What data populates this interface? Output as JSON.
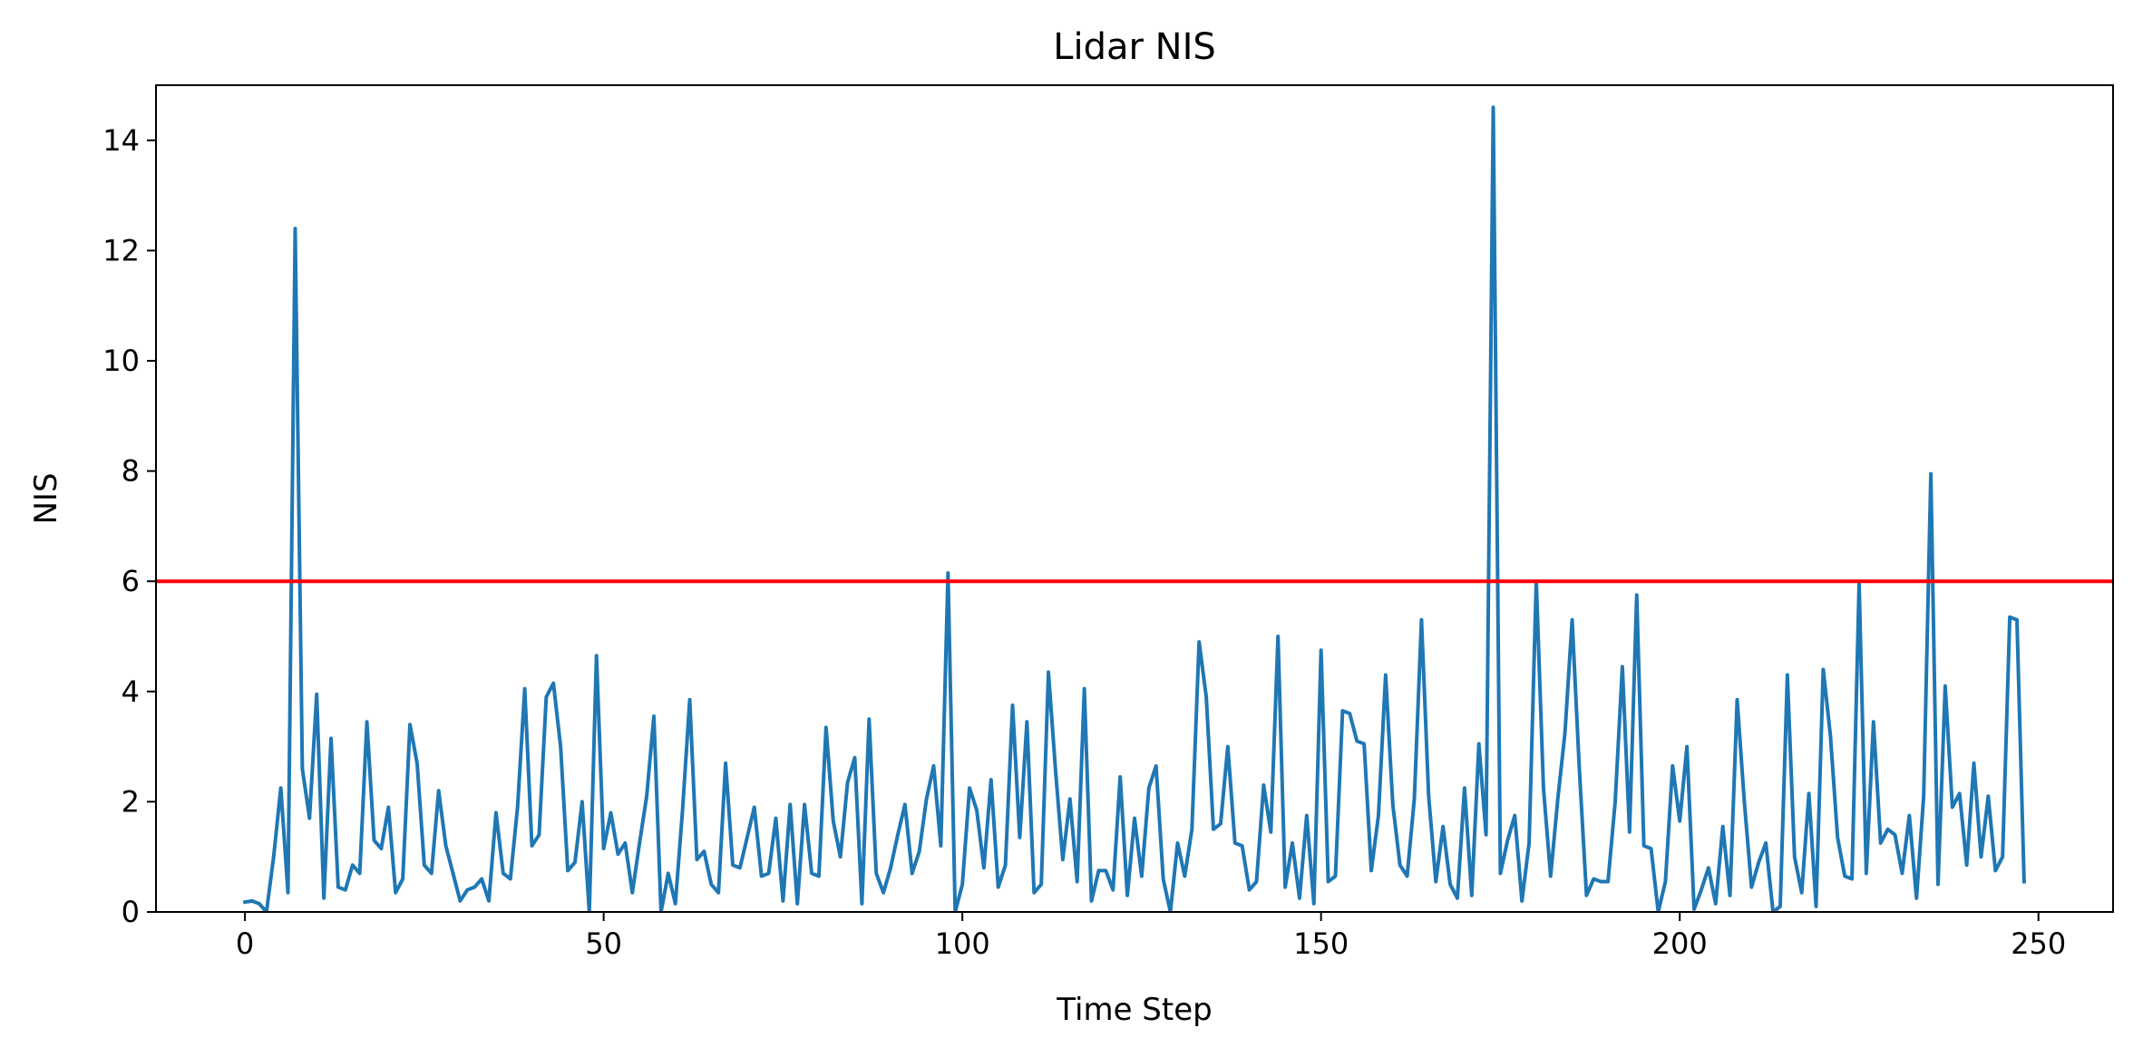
{
  "chart_data": {
    "type": "line",
    "title": "Lidar NIS",
    "xlabel": "Time Step",
    "ylabel": "NIS",
    "xlim": [
      -12.4,
      260.4
    ],
    "ylim": [
      0,
      15
    ],
    "xticks": [
      0,
      50,
      100,
      150,
      200,
      250
    ],
    "yticks": [
      0,
      2,
      4,
      6,
      8,
      10,
      12,
      14
    ],
    "grid": false,
    "threshold": {
      "value": 6.0,
      "color": "#ff0000"
    },
    "series": [
      {
        "color": "#1f77b4",
        "x": [
          0,
          1,
          2,
          3,
          4,
          5,
          6,
          7,
          8,
          9,
          10,
          11,
          12,
          13,
          14,
          15,
          16,
          17,
          18,
          19,
          20,
          21,
          22,
          23,
          24,
          25,
          26,
          27,
          28,
          29,
          30,
          31,
          32,
          33,
          34,
          35,
          36,
          37,
          38,
          39,
          40,
          41,
          42,
          43,
          44,
          45,
          46,
          47,
          48,
          49,
          50,
          51,
          52,
          53,
          54,
          55,
          56,
          57,
          58,
          59,
          60,
          61,
          62,
          63,
          64,
          65,
          66,
          67,
          68,
          69,
          70,
          71,
          72,
          73,
          74,
          75,
          76,
          77,
          78,
          79,
          80,
          81,
          82,
          83,
          84,
          85,
          86,
          87,
          88,
          89,
          90,
          91,
          92,
          93,
          94,
          95,
          96,
          97,
          98,
          99,
          100,
          101,
          102,
          103,
          104,
          105,
          106,
          107,
          108,
          109,
          110,
          111,
          112,
          113,
          114,
          115,
          116,
          117,
          118,
          119,
          120,
          121,
          122,
          123,
          124,
          125,
          126,
          127,
          128,
          129,
          130,
          131,
          132,
          133,
          134,
          135,
          136,
          137,
          138,
          139,
          140,
          141,
          142,
          143,
          144,
          145,
          146,
          147,
          148,
          149,
          150,
          151,
          152,
          153,
          154,
          155,
          156,
          157,
          158,
          159,
          160,
          161,
          162,
          163,
          164,
          165,
          166,
          167,
          168,
          169,
          170,
          171,
          172,
          173,
          174,
          175,
          176,
          177,
          178,
          179,
          180,
          181,
          182,
          183,
          184,
          185,
          186,
          187,
          188,
          189,
          190,
          191,
          192,
          193,
          194,
          195,
          196,
          197,
          198,
          199,
          200,
          201,
          202,
          203,
          204,
          205,
          206,
          207,
          208,
          209,
          210,
          211,
          212,
          213,
          214,
          215,
          216,
          217,
          218,
          219,
          220,
          221,
          222,
          223,
          224,
          225,
          226,
          227,
          228,
          229,
          230,
          231,
          232,
          233,
          234,
          235,
          236,
          237,
          238,
          239,
          240,
          241,
          242,
          243,
          244,
          245,
          246,
          247,
          248
        ],
        "y": [
          0.18,
          0.2,
          0.15,
          0.0,
          1.0,
          2.25,
          0.35,
          12.4,
          2.6,
          1.7,
          3.95,
          0.25,
          3.15,
          0.45,
          0.4,
          0.85,
          0.7,
          3.45,
          1.3,
          1.15,
          1.9,
          0.35,
          0.6,
          3.4,
          2.7,
          0.85,
          0.7,
          2.2,
          1.2,
          0.7,
          0.2,
          0.4,
          0.45,
          0.6,
          0.2,
          1.8,
          0.7,
          0.6,
          1.9,
          4.05,
          1.2,
          1.4,
          3.9,
          4.15,
          3.0,
          0.75,
          0.9,
          2.0,
          0.0,
          4.65,
          1.15,
          1.8,
          1.05,
          1.25,
          0.35,
          1.25,
          2.1,
          3.55,
          0.0,
          0.7,
          0.15,
          1.85,
          3.85,
          0.95,
          1.1,
          0.5,
          0.35,
          2.7,
          0.85,
          0.8,
          1.35,
          1.9,
          0.65,
          0.7,
          1.7,
          0.2,
          1.95,
          0.15,
          1.95,
          0.7,
          0.65,
          3.35,
          1.65,
          1.0,
          2.35,
          2.8,
          0.15,
          3.5,
          0.7,
          0.35,
          0.8,
          1.4,
          1.95,
          0.7,
          1.1,
          2.05,
          2.65,
          1.2,
          6.15,
          0.0,
          0.5,
          2.25,
          1.85,
          0.8,
          2.4,
          0.45,
          0.85,
          3.75,
          1.35,
          3.45,
          0.35,
          0.5,
          4.35,
          2.55,
          0.95,
          2.05,
          0.55,
          4.05,
          0.2,
          0.75,
          0.75,
          0.4,
          2.45,
          0.3,
          1.7,
          0.65,
          2.25,
          2.65,
          0.6,
          0.0,
          1.25,
          0.65,
          1.5,
          4.9,
          3.9,
          1.5,
          1.6,
          3.0,
          1.25,
          1.2,
          0.4,
          0.55,
          2.3,
          1.45,
          5.0,
          0.45,
          1.25,
          0.25,
          1.75,
          0.15,
          4.75,
          0.55,
          0.65,
          3.65,
          3.6,
          3.1,
          3.05,
          0.75,
          1.75,
          4.3,
          1.95,
          0.85,
          0.65,
          2.05,
          5.3,
          2.1,
          0.55,
          1.55,
          0.5,
          0.25,
          2.25,
          0.3,
          3.05,
          1.4,
          14.6,
          0.7,
          1.3,
          1.75,
          0.2,
          1.25,
          6.0,
          2.25,
          0.65,
          2.05,
          3.25,
          5.3,
          2.6,
          0.3,
          0.6,
          0.55,
          0.55,
          2.0,
          4.45,
          1.45,
          5.75,
          1.2,
          1.15,
          0.0,
          0.55,
          2.65,
          1.65,
          3.0,
          0.05,
          0.4,
          0.8,
          0.15,
          1.55,
          0.3,
          3.85,
          2.0,
          0.45,
          0.9,
          1.25,
          0.0,
          0.1,
          4.3,
          1.0,
          0.35,
          2.15,
          0.1,
          4.4,
          3.2,
          1.35,
          0.65,
          0.6,
          5.95,
          0.7,
          3.45,
          1.25,
          1.5,
          1.4,
          0.7,
          1.75,
          0.25,
          2.1,
          7.95,
          0.5,
          4.1,
          1.9,
          2.15,
          0.85,
          2.7,
          1.0,
          2.1,
          0.75,
          1.0,
          5.35,
          5.3,
          0.55
        ]
      }
    ]
  }
}
